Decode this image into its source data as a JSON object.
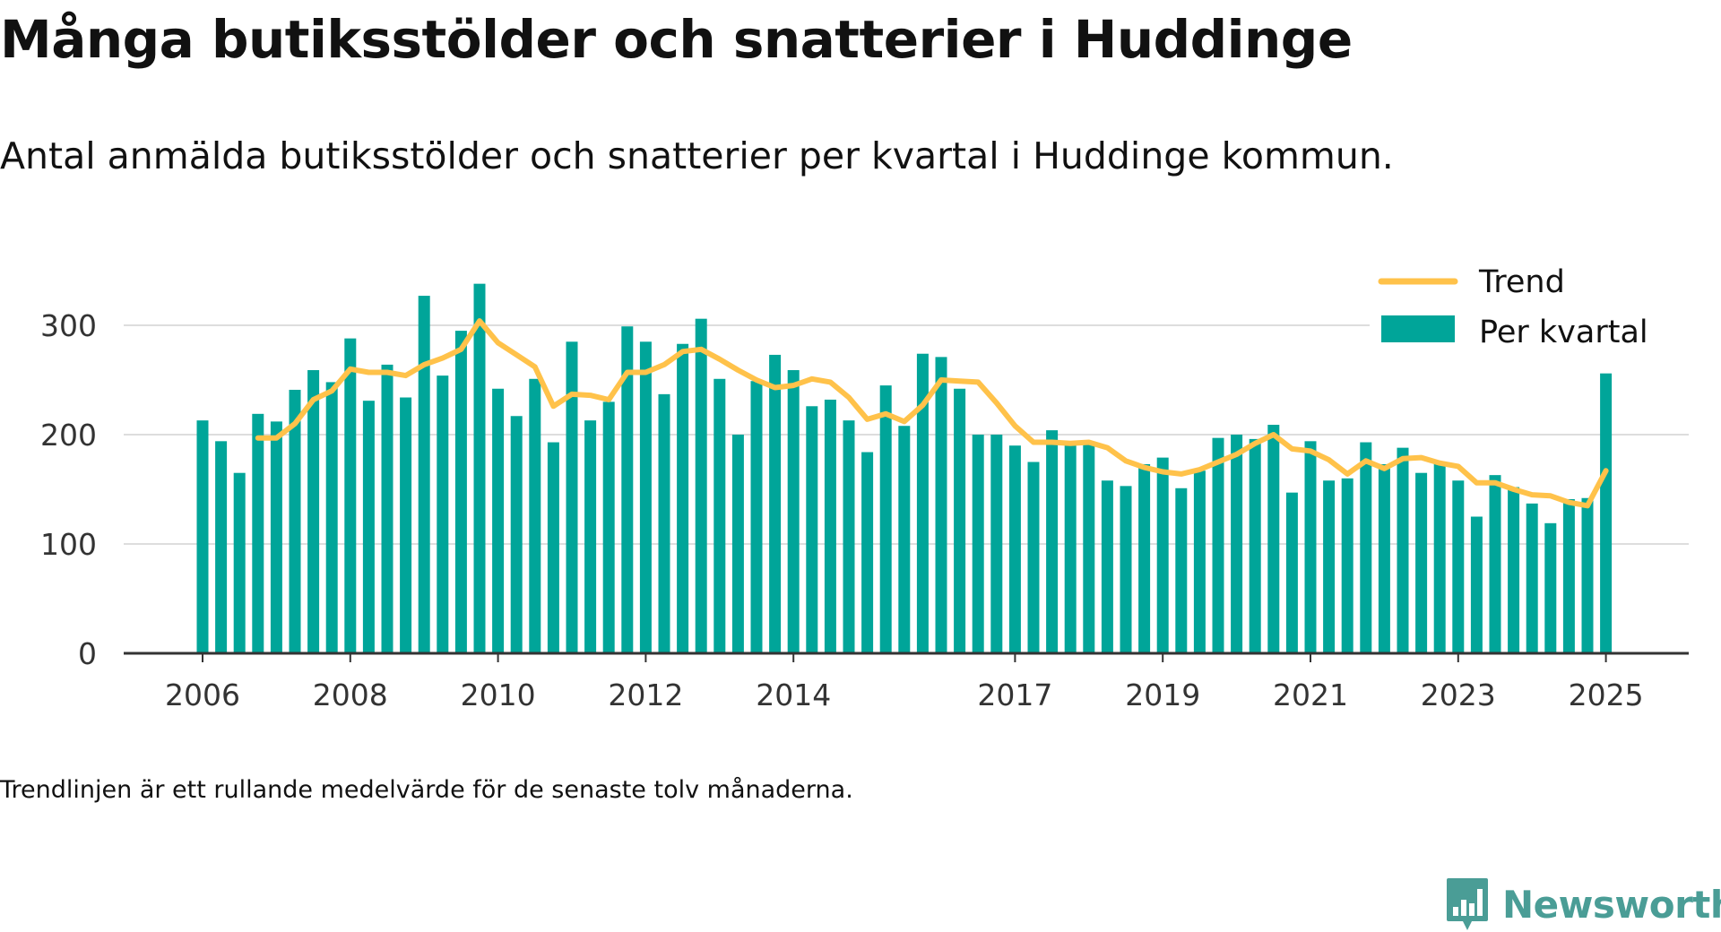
{
  "header": {
    "title": "Många butiksstölder och snatterier i Huddinge",
    "subtitle": "Antal anmälda butiksstölder och snatterier per kvartal i Huddinge kommun."
  },
  "footer": {
    "note": "Trendlinjen är ett rullande medelvärde för de senaste tolv månaderna.",
    "brand": "Newsworthy",
    "brand_icon": "bar-chart-icon"
  },
  "chart_data": {
    "type": "bar",
    "title": "Många butiksstölder och snatterier i Huddinge",
    "subtitle": "Antal anmälda butiksstölder och snatterier per kvartal i Huddinge kommun.",
    "xlabel": "",
    "ylabel": "",
    "ylim": [
      0,
      345
    ],
    "y_ticks": [
      0,
      100,
      200,
      300
    ],
    "x_ticks": [
      "2006",
      "2008",
      "2010",
      "2012",
      "2014",
      "2017",
      "2019",
      "2021",
      "2023",
      "2025"
    ],
    "grid": "horizontal",
    "legend_position": "top-right",
    "colors": {
      "bars": "#00a599",
      "trend": "#ffc24a",
      "grid": "#dddddd",
      "axis": "#333333"
    },
    "x": [
      "2006-Q1",
      "2006-Q2",
      "2006-Q3",
      "2006-Q4",
      "2007-Q1",
      "2007-Q2",
      "2007-Q3",
      "2007-Q4",
      "2008-Q1",
      "2008-Q2",
      "2008-Q3",
      "2008-Q4",
      "2009-Q1",
      "2009-Q2",
      "2009-Q3",
      "2009-Q4",
      "2010-Q1",
      "2010-Q2",
      "2010-Q3",
      "2010-Q4",
      "2011-Q1",
      "2011-Q2",
      "2011-Q3",
      "2011-Q4",
      "2012-Q1",
      "2012-Q2",
      "2012-Q3",
      "2012-Q4",
      "2013-Q1",
      "2013-Q2",
      "2013-Q3",
      "2013-Q4",
      "2014-Q1",
      "2014-Q2",
      "2014-Q3",
      "2014-Q4",
      "2015-Q1",
      "2015-Q2",
      "2015-Q3",
      "2015-Q4",
      "2016-Q1",
      "2016-Q2",
      "2016-Q3",
      "2016-Q4",
      "2017-Q1",
      "2017-Q2",
      "2017-Q3",
      "2017-Q4",
      "2018-Q1",
      "2018-Q2",
      "2018-Q3",
      "2018-Q4",
      "2019-Q1",
      "2019-Q2",
      "2019-Q3",
      "2019-Q4",
      "2020-Q1",
      "2020-Q2",
      "2020-Q3",
      "2020-Q4",
      "2021-Q1",
      "2021-Q2",
      "2021-Q3",
      "2021-Q4",
      "2022-Q1",
      "2022-Q2",
      "2022-Q3",
      "2022-Q4",
      "2023-Q1",
      "2023-Q2",
      "2023-Q3",
      "2023-Q4",
      "2024-Q1",
      "2024-Q2",
      "2024-Q3",
      "2024-Q4",
      "2025-Q1"
    ],
    "series": [
      {
        "name": "Per kvartal",
        "type": "bar",
        "values": [
          213,
          194,
          165,
          219,
          212,
          241,
          259,
          248,
          288,
          231,
          264,
          234,
          327,
          254,
          295,
          338,
          242,
          217,
          251,
          193,
          285,
          213,
          230,
          299,
          285,
          237,
          283,
          306,
          251,
          200,
          249,
          273,
          259,
          226,
          232,
          213,
          184,
          245,
          208,
          274,
          271,
          242,
          200,
          200,
          190,
          175,
          204,
          193,
          193,
          158,
          153,
          173,
          179,
          151,
          167,
          197,
          200,
          196,
          209,
          147,
          194,
          158,
          160,
          193,
          173,
          188,
          165,
          173,
          158,
          125,
          163,
          152,
          137,
          119,
          141,
          142,
          256
        ]
      },
      {
        "name": "Trend",
        "type": "line",
        "values": [
          null,
          null,
          null,
          197,
          197,
          210,
          232,
          240,
          260,
          257,
          257,
          254,
          264,
          270,
          278,
          304,
          284,
          273,
          262,
          226,
          237,
          236,
          232,
          257,
          257,
          264,
          276,
          278,
          269,
          259,
          250,
          243,
          245,
          251,
          248,
          234,
          214,
          219,
          212,
          227,
          250,
          249,
          248,
          229,
          208,
          193,
          193,
          192,
          193,
          188,
          176,
          170,
          166,
          164,
          168,
          175,
          182,
          192,
          200,
          187,
          185,
          177,
          164,
          176,
          169,
          178,
          179,
          174,
          171,
          156,
          156,
          150,
          145,
          144,
          138,
          135,
          167
        ]
      }
    ]
  }
}
